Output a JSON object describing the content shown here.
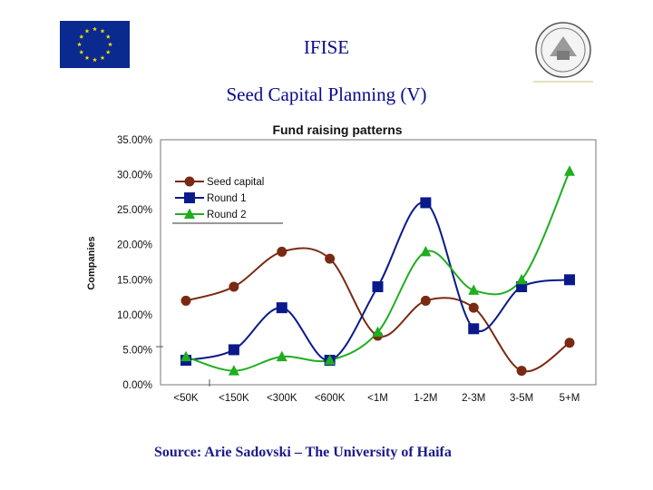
{
  "header": {
    "org": "IFISE",
    "subtitle": "Seed Capital Planning (V)"
  },
  "footer": {
    "source": "Source: Arie Sadovski – The University of Haifa"
  },
  "logos": {
    "left": "eu-flag",
    "right": "university-seal"
  },
  "chart_data": {
    "type": "line",
    "title": "Fund raising patterns",
    "xlabel": "",
    "ylabel": "Companies",
    "categories": [
      "<50K",
      "<150K",
      "<300K",
      "<600K",
      "<1M",
      "1-2M",
      "2-3M",
      "3-5M",
      "5+M"
    ],
    "yticks": [
      "0.00%",
      "5.00%",
      "10.00%",
      "15.00%",
      "20.00%",
      "25.00%",
      "30.00%",
      "35.00%"
    ],
    "ylim": [
      0,
      35
    ],
    "legend_position": "top-left",
    "grid": false,
    "series": [
      {
        "name": "Seed capital",
        "marker": "circle",
        "color": "#7a2a12",
        "values": [
          12,
          14,
          19,
          18,
          7,
          12,
          11,
          2,
          6
        ]
      },
      {
        "name": "Round 1",
        "marker": "square",
        "color": "#0a1a8a",
        "values": [
          3.5,
          5,
          11,
          3.5,
          14,
          26,
          8,
          14,
          15
        ]
      },
      {
        "name": "Round 2",
        "marker": "triangle",
        "color": "#1fae1f",
        "values": [
          4,
          2,
          4,
          3.5,
          7.5,
          19,
          13.5,
          15,
          30.5
        ]
      }
    ]
  }
}
